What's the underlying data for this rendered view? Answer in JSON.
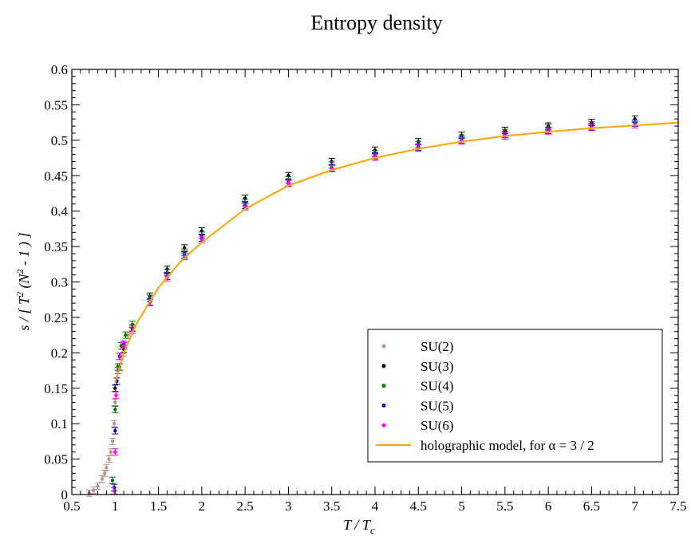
{
  "chart_data": {
    "type": "scatter",
    "title": "Entropy density",
    "xlabel": {
      "main": "T / T",
      "sub": "c"
    },
    "ylabel": {
      "prefix": "s / [ T",
      "sup": "2",
      "mid": " (N",
      "sup2": "2",
      "suffix": " - 1 ) ]"
    },
    "xlim": [
      0.5,
      7.5
    ],
    "ylim": [
      0,
      0.6
    ],
    "x_ticks": [
      "0.5",
      "1",
      "1.5",
      "2",
      "2.5",
      "3",
      "3.5",
      "4",
      "4.5",
      "5",
      "5.5",
      "6",
      "6.5",
      "7",
      "7.5"
    ],
    "y_ticks": [
      "0",
      "0.05",
      "0.1",
      "0.15",
      "0.2",
      "0.25",
      "0.3",
      "0.35",
      "0.4",
      "0.45",
      "0.5",
      "0.55",
      "0.6"
    ],
    "grid": false,
    "legend_position": "bottom-right",
    "series": [
      {
        "name": "SU(2)",
        "color": "#bc8f8f",
        "marker": "circle",
        "error_bars": true,
        "points": [
          [
            0.7,
            0.002
          ],
          [
            0.75,
            0.006
          ],
          [
            0.8,
            0.012
          ],
          [
            0.85,
            0.022
          ],
          [
            0.88,
            0.03
          ],
          [
            0.9,
            0.038
          ],
          [
            0.93,
            0.05
          ],
          [
            0.95,
            0.06
          ],
          [
            0.97,
            0.075
          ],
          [
            0.99,
            0.1
          ],
          [
            1.0,
            0.13
          ],
          [
            1.02,
            0.16
          ],
          [
            1.05,
            0.18
          ],
          [
            1.1,
            0.2
          ],
          [
            1.15,
            0.225
          ]
        ]
      },
      {
        "name": "SU(3)",
        "color": "#000000",
        "marker": "circle",
        "error_bars": true,
        "points": [
          [
            1.0,
            0.15
          ],
          [
            1.05,
            0.18
          ],
          [
            1.1,
            0.205
          ],
          [
            1.2,
            0.235
          ],
          [
            1.4,
            0.28
          ],
          [
            1.6,
            0.318
          ],
          [
            1.8,
            0.348
          ],
          [
            2.0,
            0.372
          ],
          [
            2.5,
            0.418
          ],
          [
            3.0,
            0.45
          ],
          [
            3.5,
            0.47
          ],
          [
            4.0,
            0.486
          ],
          [
            4.5,
            0.498
          ],
          [
            5.0,
            0.507
          ],
          [
            5.5,
            0.514
          ],
          [
            6.0,
            0.52
          ],
          [
            6.5,
            0.525
          ],
          [
            7.0,
            0.53
          ]
        ]
      },
      {
        "name": "SU(4)",
        "color": "#007700",
        "marker": "circle",
        "error_bars": true,
        "points": [
          [
            0.97,
            0.02
          ],
          [
            1.0,
            0.12
          ],
          [
            1.03,
            0.18
          ],
          [
            1.07,
            0.21
          ],
          [
            1.12,
            0.225
          ],
          [
            1.2,
            0.24
          ],
          [
            1.4,
            0.277
          ],
          [
            1.6,
            0.313
          ],
          [
            1.8,
            0.342
          ],
          [
            2.0,
            0.366
          ],
          [
            2.5,
            0.412
          ],
          [
            3.0,
            0.444
          ],
          [
            3.5,
            0.465
          ],
          [
            4.0,
            0.481
          ],
          [
            4.5,
            0.494
          ],
          [
            5.0,
            0.503
          ],
          [
            5.5,
            0.511
          ],
          [
            6.0,
            0.518
          ],
          [
            6.5,
            0.522
          ]
        ]
      },
      {
        "name": "SU(5)",
        "color": "#0000dd",
        "marker": "circle",
        "error_bars": true,
        "points": [
          [
            0.99,
            0.01
          ],
          [
            1.0,
            0.09
          ],
          [
            1.02,
            0.16
          ],
          [
            1.05,
            0.195
          ],
          [
            1.1,
            0.212
          ],
          [
            1.2,
            0.232
          ],
          [
            1.4,
            0.272
          ],
          [
            1.6,
            0.308
          ],
          [
            1.8,
            0.338
          ],
          [
            2.0,
            0.362
          ],
          [
            2.5,
            0.408
          ],
          [
            3.0,
            0.44
          ],
          [
            3.5,
            0.461
          ],
          [
            4.0,
            0.478
          ],
          [
            4.5,
            0.49
          ],
          [
            5.0,
            0.5
          ],
          [
            5.5,
            0.508
          ],
          [
            6.0,
            0.514
          ],
          [
            6.5,
            0.519
          ],
          [
            7.0,
            0.524
          ]
        ]
      },
      {
        "name": "SU(6)",
        "color": "#ff00ff",
        "marker": "circle",
        "error_bars": true,
        "points": [
          [
            0.99,
            0.005
          ],
          [
            1.0,
            0.06
          ],
          [
            1.01,
            0.14
          ],
          [
            1.03,
            0.175
          ],
          [
            1.06,
            0.195
          ],
          [
            1.1,
            0.21
          ],
          [
            1.2,
            0.232
          ],
          [
            1.4,
            0.271
          ],
          [
            1.6,
            0.306
          ],
          [
            1.8,
            0.336
          ],
          [
            2.0,
            0.36
          ],
          [
            2.5,
            0.406
          ],
          [
            3.0,
            0.439
          ],
          [
            3.5,
            0.46
          ],
          [
            4.0,
            0.476
          ],
          [
            4.5,
            0.489
          ],
          [
            5.0,
            0.499
          ],
          [
            5.5,
            0.506
          ],
          [
            6.0,
            0.513
          ],
          [
            6.5,
            0.518
          ],
          [
            7.0,
            0.522
          ]
        ]
      },
      {
        "name": "holographic model, for α = 3 / 2",
        "color": "#ffa500",
        "marker": "line",
        "error_bars": false,
        "points": [
          [
            1.0,
            0.158
          ],
          [
            1.1,
            0.2
          ],
          [
            1.25,
            0.242
          ],
          [
            1.5,
            0.292
          ],
          [
            1.75,
            0.328
          ],
          [
            2.0,
            0.356
          ],
          [
            2.5,
            0.403
          ],
          [
            3.0,
            0.436
          ],
          [
            3.5,
            0.458
          ],
          [
            4.0,
            0.475
          ],
          [
            4.5,
            0.488
          ],
          [
            5.0,
            0.498
          ],
          [
            5.5,
            0.506
          ],
          [
            6.0,
            0.512
          ],
          [
            6.5,
            0.517
          ],
          [
            7.0,
            0.521
          ],
          [
            7.5,
            0.525
          ]
        ]
      }
    ]
  }
}
